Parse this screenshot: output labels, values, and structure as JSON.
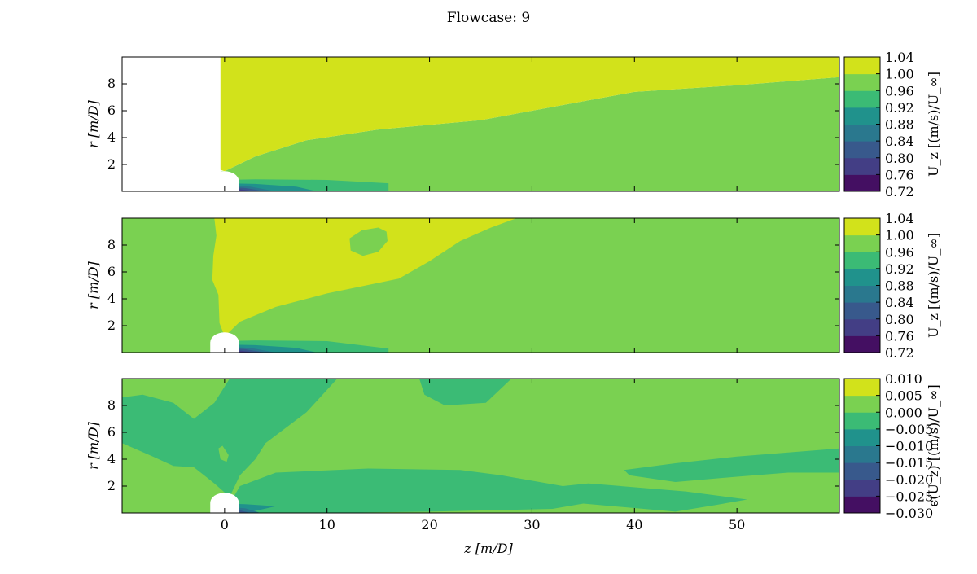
{
  "figure": {
    "title": "Flowcase: 9"
  },
  "chart_data": {
    "type": "heatmap",
    "title": "Flowcase: 9",
    "xlabel": "z [m/D]",
    "xlim": [
      -10,
      60
    ],
    "xticks": [
      0,
      10,
      20,
      30,
      40,
      50
    ],
    "colormap": "viridis",
    "panels": [
      {
        "id": "top",
        "ylabel": "r [m/D]",
        "ylim": [
          0,
          10
        ],
        "yticks": [
          2,
          4,
          6,
          8
        ],
        "colorbar": {
          "label": "U_z [(m/s)/U_∞]",
          "levels": [
            "0.72",
            "0.76",
            "0.80",
            "0.84",
            "0.88",
            "0.92",
            "0.96",
            "1.00",
            "1.04"
          ],
          "colors": [
            "#440f62",
            "#433e85",
            "#38598c",
            "#2a788e",
            "#20928c",
            "#3bbb75",
            "#7ad151",
            "#d2e21b"
          ]
        },
        "regions": [
          {
            "level": 6,
            "label": "0.96–1.00",
            "path": [
              [
                -10,
                0
              ],
              [
                -10,
                10
              ],
              [
                -0.4,
                10
              ],
              [
                -0.4,
                1.5
              ],
              [
                0,
                1.0
              ],
              [
                2,
                0.6
              ],
              [
                8,
                0.4
              ],
              [
                14,
                0.2
              ],
              [
                16,
                0
              ],
              [
                40,
                0
              ],
              [
                60,
                0
              ],
              [
                60,
                8.5
              ],
              [
                50,
                7.9
              ],
              [
                40,
                7.4
              ],
              [
                35,
                6.7
              ],
              [
                30,
                6.0
              ],
              [
                25,
                5.3
              ],
              [
                15,
                4.6
              ],
              [
                8,
                3.8
              ],
              [
                3,
                2.6
              ],
              [
                0,
                1.5
              ],
              [
                -0.4,
                1.5
              ],
              [
                -0.4,
                10
              ],
              [
                -10,
                10
              ]
            ]
          },
          {
            "level": 7,
            "label": "1.00–1.04",
            "path": [
              [
                -0.4,
                10
              ],
              [
                60,
                10
              ],
              [
                60,
                8.5
              ],
              [
                50,
                7.9
              ],
              [
                40,
                7.4
              ],
              [
                35,
                6.7
              ],
              [
                30,
                6.0
              ],
              [
                25,
                5.3
              ],
              [
                15,
                4.6
              ],
              [
                8,
                3.8
              ],
              [
                3,
                2.6
              ],
              [
                0,
                1.5
              ],
              [
                -0.4,
                1.6
              ]
            ]
          },
          {
            "level": 5,
            "label": "0.92–0.96",
            "path": [
              [
                0,
                0
              ],
              [
                0,
                0.85
              ],
              [
                3,
                0.9
              ],
              [
                10,
                0.85
              ],
              [
                16,
                0.6
              ],
              [
                16,
                0
              ],
              [
                0,
                0
              ]
            ]
          },
          {
            "level": 4,
            "label": "0.88–0.92",
            "path": [
              [
                0,
                0
              ],
              [
                0,
                0.6
              ],
              [
                3,
                0.55
              ],
              [
                7,
                0.35
              ],
              [
                9,
                0
              ]
            ]
          },
          {
            "level": 3,
            "label": "0.84–0.88",
            "path": [
              [
                0,
                0
              ],
              [
                0,
                0.45
              ],
              [
                2.5,
                0.35
              ],
              [
                5,
                0
              ]
            ]
          },
          {
            "level": 2,
            "label": "0.80–0.84",
            "path": [
              [
                0,
                0
              ],
              [
                0,
                0.35
              ],
              [
                2,
                0.25
              ],
              [
                4,
                0
              ]
            ]
          },
          {
            "level": 1,
            "label": "0.76–0.80",
            "path": [
              [
                0,
                0
              ],
              [
                0,
                0.25
              ],
              [
                1.5,
                0.15
              ],
              [
                3,
                0
              ]
            ]
          },
          {
            "level": 0,
            "label": "0.72–0.76",
            "path": [
              [
                0,
                0
              ],
              [
                0,
                0.15
              ],
              [
                1.5,
                0
              ]
            ]
          }
        ]
      },
      {
        "id": "middle",
        "ylabel": "r [m/D]",
        "ylim": [
          0,
          10
        ],
        "yticks": [
          2,
          4,
          6,
          8
        ],
        "colorbar": {
          "label": "U_z [(m/s)/U_∞]",
          "levels": [
            "0.72",
            "0.76",
            "0.80",
            "0.84",
            "0.88",
            "0.92",
            "0.96",
            "1.00",
            "1.04"
          ],
          "colors": [
            "#440f62",
            "#433e85",
            "#38598c",
            "#2a788e",
            "#20928c",
            "#3bbb75",
            "#7ad151",
            "#d2e21b"
          ]
        },
        "regions": [
          {
            "level": 6,
            "label": "0.96–1.00",
            "path": [
              [
                -10,
                0
              ],
              [
                -10,
                10
              ],
              [
                60,
                10
              ],
              [
                60,
                0
              ]
            ]
          },
          {
            "level": 7,
            "label": "1.00–1.04",
            "path": [
              [
                -1,
                10
              ],
              [
                28.5,
                10
              ],
              [
                26,
                9.3
              ],
              [
                23,
                8.3
              ],
              [
                20,
                6.8
              ],
              [
                17,
                5.5
              ],
              [
                10,
                4.4
              ],
              [
                5,
                3.4
              ],
              [
                1.5,
                2.3
              ],
              [
                0,
                1.2
              ],
              [
                -0.5,
                2.2
              ],
              [
                -0.6,
                4.3
              ],
              [
                -1.2,
                5.4
              ],
              [
                -1.1,
                7.2
              ],
              [
                -0.8,
                8.7
              ]
            ]
          },
          {
            "level": 6,
            "label": "0.96–1.00",
            "path": [
              [
                12.2,
                8.5
              ],
              [
                13.4,
                9.1
              ],
              [
                15,
                9.3
              ],
              [
                15.8,
                9.0
              ],
              [
                15.9,
                8.3
              ],
              [
                15,
                7.5
              ],
              [
                13.5,
                7.2
              ],
              [
                12.3,
                7.6
              ]
            ]
          },
          {
            "level": 5,
            "label": "0.92–0.96",
            "path": [
              [
                0,
                0
              ],
              [
                0,
                0.85
              ],
              [
                3,
                0.9
              ],
              [
                10,
                0.85
              ],
              [
                16,
                0.3
              ],
              [
                16,
                0
              ],
              [
                0,
                0
              ]
            ]
          },
          {
            "level": 4,
            "label": "0.88–0.92",
            "path": [
              [
                0,
                0
              ],
              [
                0,
                0.6
              ],
              [
                3,
                0.55
              ],
              [
                7,
                0.35
              ],
              [
                9,
                0
              ]
            ]
          },
          {
            "level": 3,
            "label": "0.84–0.88",
            "path": [
              [
                0,
                0
              ],
              [
                0,
                0.45
              ],
              [
                2.5,
                0.35
              ],
              [
                5,
                0
              ]
            ]
          },
          {
            "level": 2,
            "label": "0.80–0.84",
            "path": [
              [
                0,
                0
              ],
              [
                0,
                0.35
              ],
              [
                2,
                0.25
              ],
              [
                4,
                0
              ]
            ]
          },
          {
            "level": 1,
            "label": "0.76–0.80",
            "path": [
              [
                0,
                0
              ],
              [
                0,
                0.25
              ],
              [
                1.5,
                0.15
              ],
              [
                3,
                0
              ]
            ]
          },
          {
            "level": 0,
            "label": "0.72–0.76",
            "path": [
              [
                0,
                0
              ],
              [
                0,
                0.15
              ],
              [
                1.5,
                0
              ]
            ]
          }
        ]
      },
      {
        "id": "bottom",
        "ylabel": "r [m/D]",
        "ylim": [
          0,
          10
        ],
        "yticks": [
          2,
          4,
          6,
          8
        ],
        "colorbar": {
          "label": "ϵ(U_z) [(m/s)/U_∞]",
          "levels": [
            "−0.030",
            "−0.025",
            "−0.020",
            "−0.015",
            "−0.010",
            "−0.005",
            "0.000",
            "0.005",
            "0.010"
          ],
          "colors": [
            "#440f62",
            "#433e85",
            "#38598c",
            "#2a788e",
            "#20928c",
            "#3bbb75",
            "#7ad151",
            "#d2e21b"
          ]
        },
        "regions": [
          {
            "level": 6,
            "label": "0.000–0.005",
            "path": [
              [
                -10,
                0
              ],
              [
                -10,
                10
              ],
              [
                60,
                10
              ],
              [
                60,
                0
              ]
            ]
          },
          {
            "level": 5,
            "label": "-0.005–0.000",
            "path": [
              [
                -10,
                8.6
              ],
              [
                -8,
                8.8
              ],
              [
                -5,
                8.2
              ],
              [
                -3,
                7.0
              ],
              [
                -1,
                8.2
              ],
              [
                0.5,
                10
              ],
              [
                11,
                10
              ],
              [
                8,
                7.5
              ],
              [
                4,
                5.2
              ],
              [
                3,
                4.0
              ],
              [
                1.5,
                2.8
              ],
              [
                0.5,
                1.2
              ],
              [
                -1,
                2.2
              ],
              [
                -3,
                3.4
              ],
              [
                -5,
                3.5
              ],
              [
                -7,
                4.2
              ],
              [
                -10,
                5.2
              ]
            ]
          },
          {
            "level": 6,
            "label": "0.000–0.005",
            "path": [
              [
                -0.6,
                4.8
              ],
              [
                -0.2,
                5.0
              ],
              [
                0.4,
                4.3
              ],
              [
                0.2,
                3.8
              ],
              [
                -0.4,
                4.0
              ]
            ]
          },
          {
            "level": 5,
            "label": "-0.005–0.000",
            "path": [
              [
                19,
                10
              ],
              [
                28,
                10
              ],
              [
                25.5,
                8.2
              ],
              [
                21.5,
                8.0
              ],
              [
                19.5,
                8.8
              ]
            ]
          },
          {
            "level": 5,
            "label": "-0.005–0.000",
            "path": [
              [
                0,
                0
              ],
              [
                1.5,
                2.0
              ],
              [
                5,
                3.0
              ],
              [
                14,
                3.3
              ],
              [
                23,
                3.2
              ],
              [
                27,
                2.8
              ],
              [
                30,
                2.4
              ],
              [
                33,
                2.0
              ],
              [
                35.5,
                2.2
              ],
              [
                45,
                1.6
              ],
              [
                51,
                1.0
              ],
              [
                48,
                0.6
              ],
              [
                44,
                0.1
              ],
              [
                35,
                0.7
              ],
              [
                32,
                0.3
              ],
              [
                20,
                0.1
              ],
              [
                10,
                0
              ],
              [
                0,
                0
              ]
            ]
          },
          {
            "level": 5,
            "label": "-0.005–0.000",
            "path": [
              [
                39,
                3.2
              ],
              [
                44,
                3.7
              ],
              [
                50,
                4.2
              ],
              [
                60,
                4.8
              ],
              [
                60,
                3.0
              ],
              [
                55,
                3.0
              ],
              [
                50,
                2.7
              ],
              [
                44,
                2.3
              ],
              [
                39.5,
                2.8
              ]
            ]
          },
          {
            "level": 4,
            "label": "-0.010–-0.005",
            "path": [
              [
                0,
                0
              ],
              [
                0,
                0.7
              ],
              [
                2,
                0.65
              ],
              [
                5,
                0.5
              ],
              [
                3,
                0.15
              ],
              [
                0,
                0
              ]
            ]
          },
          {
            "level": 3,
            "label": "-0.015–-0.010",
            "path": [
              [
                0,
                0
              ],
              [
                0,
                0.45
              ],
              [
                2,
                0.35
              ],
              [
                3.5,
                0
              ]
            ]
          },
          {
            "level": 2,
            "label": "-0.020–-0.015",
            "path": [
              [
                0,
                0
              ],
              [
                0,
                0.3
              ],
              [
                1.5,
                0.2
              ],
              [
                2.5,
                0
              ]
            ]
          },
          {
            "level": 1,
            "label": "-0.025–-0.020",
            "path": [
              [
                0,
                0
              ],
              [
                0,
                0.2
              ],
              [
                1.2,
                0
              ]
            ]
          }
        ]
      }
    ],
    "hub": {
      "center_z": 0,
      "radius_z": 1.4,
      "height_r": 1.5
    }
  }
}
